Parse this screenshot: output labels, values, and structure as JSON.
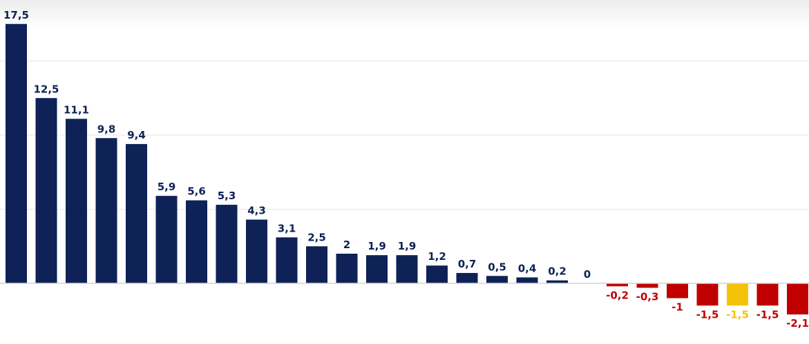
{
  "chart_data": {
    "type": "bar",
    "title": "",
    "xlabel": "",
    "ylabel": "",
    "categories": [
      "",
      "",
      "",
      "",
      "",
      "",
      "",
      "",
      "",
      "",
      "",
      "",
      "",
      "",
      "",
      "",
      "",
      "",
      "",
      "",
      "",
      "",
      "",
      "",
      "",
      "",
      ""
    ],
    "values": [
      17.5,
      12.5,
      11.1,
      9.8,
      9.4,
      5.9,
      5.6,
      5.3,
      4.3,
      3.1,
      2.5,
      2,
      1.9,
      1.9,
      1.2,
      0.7,
      0.5,
      0.4,
      0.2,
      0,
      -0.2,
      -0.3,
      -1,
      -1.5,
      -1.5,
      -1.5,
      -2.1
    ],
    "labels": [
      "17,5",
      "12,5",
      "11,1",
      "9,8",
      "9,4",
      "5,9",
      "5,6",
      "5,3",
      "4,3",
      "3,1",
      "2,5",
      "2",
      "1,9",
      "1,9",
      "1,2",
      "0,7",
      "0,5",
      "0,4",
      "0,2",
      "0",
      "-0,2",
      "-0,3",
      "-1",
      "-1,5",
      "-1,5",
      "-1,5",
      "-2,1"
    ],
    "ylim": [
      -2.1,
      17.5
    ],
    "gridlines": [
      5,
      10,
      15
    ],
    "legend": "none",
    "colors": {
      "positive": "#0e2257",
      "negative": "#c00000",
      "highlight": "#f5c20a",
      "grid": "#e6e6e6",
      "axis": "#d4d4d4"
    },
    "highlight_index": 24
  }
}
